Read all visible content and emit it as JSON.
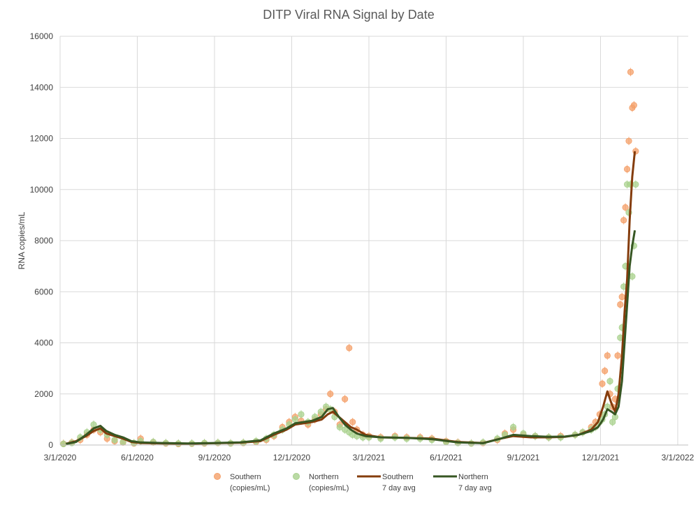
{
  "chart_data": {
    "type": "scatter",
    "title": "DITP Viral RNA Signal by Date",
    "xlabel": "",
    "ylabel": "RNA copies/mL",
    "x_ticks": [
      "3/1/2020",
      "6/1/2020",
      "9/1/2020",
      "12/1/2020",
      "3/1/2021",
      "6/1/2021",
      "9/1/2021",
      "12/1/2021",
      "3/1/2022"
    ],
    "y_ticks": [
      "0",
      "2000",
      "4000",
      "6000",
      "8000",
      "10000",
      "12000",
      "14000",
      "16000"
    ],
    "ylim": [
      0,
      16000
    ],
    "xlim": [
      "2020-03-01",
      "2022-03-01"
    ],
    "grid": true,
    "legend_position": "bottom",
    "series": [
      {
        "name": "Southern (copies/mL)",
        "name_lines": [
          "Southern",
          "(copies/mL)"
        ],
        "kind": "scatter",
        "color": "#f4a06a",
        "x": [
          "2020-03-05",
          "2020-03-15",
          "2020-03-25",
          "2020-04-02",
          "2020-04-10",
          "2020-04-18",
          "2020-04-26",
          "2020-05-05",
          "2020-05-15",
          "2020-05-28",
          "2020-06-05",
          "2020-06-20",
          "2020-07-05",
          "2020-07-20",
          "2020-08-05",
          "2020-08-20",
          "2020-09-05",
          "2020-09-20",
          "2020-10-05",
          "2020-10-20",
          "2020-11-01",
          "2020-11-10",
          "2020-11-20",
          "2020-11-28",
          "2020-12-05",
          "2020-12-12",
          "2020-12-20",
          "2020-12-28",
          "2021-01-04",
          "2021-01-10",
          "2021-01-15",
          "2021-01-20",
          "2021-01-26",
          "2021-02-01",
          "2021-02-06",
          "2021-02-10",
          "2021-02-15",
          "2021-02-22",
          "2021-03-01",
          "2021-03-15",
          "2021-04-01",
          "2021-04-15",
          "2021-05-01",
          "2021-05-15",
          "2021-06-01",
          "2021-06-15",
          "2021-07-01",
          "2021-07-15",
          "2021-08-01",
          "2021-08-10",
          "2021-08-20",
          "2021-09-01",
          "2021-09-15",
          "2021-10-01",
          "2021-10-15",
          "2021-11-01",
          "2021-11-10",
          "2021-11-20",
          "2021-11-25",
          "2021-11-30",
          "2021-12-03",
          "2021-12-06",
          "2021-12-09",
          "2021-12-12",
          "2021-12-15",
          "2021-12-18",
          "2021-12-21",
          "2021-12-24",
          "2021-12-26",
          "2021-12-28",
          "2021-12-30",
          "2022-01-01",
          "2022-01-03",
          "2022-01-05",
          "2022-01-07",
          "2022-01-09",
          "2022-01-11"
        ],
        "y": [
          50,
          100,
          200,
          400,
          600,
          500,
          250,
          150,
          100,
          60,
          250,
          100,
          60,
          40,
          50,
          60,
          80,
          60,
          80,
          120,
          200,
          350,
          700,
          900,
          1100,
          950,
          800,
          1000,
          1200,
          1400,
          2000,
          1300,
          800,
          1800,
          3800,
          900,
          600,
          400,
          350,
          300,
          350,
          300,
          300,
          250,
          150,
          100,
          60,
          80,
          200,
          450,
          600,
          400,
          350,
          300,
          350,
          400,
          500,
          700,
          900,
          1200,
          2400,
          2900,
          3500,
          2000,
          1500,
          1800,
          3500,
          5500,
          5800,
          8800,
          9300,
          10800,
          11900,
          14600,
          13200,
          13300,
          11500
        ]
      },
      {
        "name": "Northern (copies/mL)",
        "name_lines": [
          "Northern",
          "(copies/mL)"
        ],
        "kind": "scatter",
        "color": "#a9d18e",
        "x": [
          "2020-03-05",
          "2020-03-15",
          "2020-03-25",
          "2020-04-02",
          "2020-04-10",
          "2020-04-18",
          "2020-04-26",
          "2020-05-05",
          "2020-05-15",
          "2020-05-28",
          "2020-06-05",
          "2020-06-20",
          "2020-07-05",
          "2020-07-20",
          "2020-08-05",
          "2020-08-20",
          "2020-09-05",
          "2020-09-20",
          "2020-10-05",
          "2020-10-20",
          "2020-11-01",
          "2020-11-10",
          "2020-11-20",
          "2020-11-28",
          "2020-12-05",
          "2020-12-12",
          "2020-12-20",
          "2020-12-28",
          "2021-01-04",
          "2021-01-10",
          "2021-01-15",
          "2021-01-20",
          "2021-01-26",
          "2021-02-01",
          "2021-02-06",
          "2021-02-10",
          "2021-02-15",
          "2021-02-22",
          "2021-03-01",
          "2021-03-15",
          "2021-04-01",
          "2021-04-15",
          "2021-05-01",
          "2021-05-15",
          "2021-06-01",
          "2021-06-15",
          "2021-07-01",
          "2021-07-15",
          "2021-08-01",
          "2021-08-10",
          "2021-08-20",
          "2021-09-01",
          "2021-09-15",
          "2021-10-01",
          "2021-10-15",
          "2021-11-01",
          "2021-11-10",
          "2021-11-20",
          "2021-11-25",
          "2021-11-30",
          "2021-12-03",
          "2021-12-06",
          "2021-12-09",
          "2021-12-12",
          "2021-12-15",
          "2021-12-18",
          "2021-12-21",
          "2021-12-24",
          "2021-12-26",
          "2021-12-28",
          "2021-12-30",
          "2022-01-01",
          "2022-01-03",
          "2022-01-05",
          "2022-01-07",
          "2022-01-09",
          "2022-01-11"
        ],
        "y": [
          40,
          80,
          300,
          500,
          800,
          600,
          400,
          200,
          120,
          80,
          150,
          120,
          80,
          60,
          60,
          80,
          90,
          70,
          90,
          150,
          250,
          400,
          600,
          800,
          1000,
          1200,
          900,
          1100,
          1300,
          1500,
          1400,
          1100,
          700,
          600,
          500,
          400,
          350,
          300,
          300,
          250,
          300,
          250,
          250,
          200,
          120,
          80,
          60,
          100,
          250,
          400,
          700,
          450,
          350,
          300,
          300,
          400,
          500,
          600,
          700,
          900,
          1000,
          1200,
          1500,
          2500,
          900,
          1100,
          2200,
          4200,
          4600,
          6200,
          7000,
          10200,
          9100,
          10200,
          6600,
          7800,
          10200
        ]
      },
      {
        "name": "Southern 7 day avg",
        "name_lines": [
          "Southern",
          "7 day avg"
        ],
        "kind": "line",
        "color": "#843c0c",
        "x": [
          "2020-03-08",
          "2020-03-20",
          "2020-04-01",
          "2020-04-10",
          "2020-04-18",
          "2020-04-25",
          "2020-05-05",
          "2020-05-15",
          "2020-05-25",
          "2020-06-05",
          "2020-07-01",
          "2020-08-01",
          "2020-09-01",
          "2020-10-01",
          "2020-10-25",
          "2020-11-10",
          "2020-11-25",
          "2020-12-05",
          "2020-12-15",
          "2020-12-25",
          "2021-01-05",
          "2021-01-12",
          "2021-01-18",
          "2021-01-25",
          "2021-02-01",
          "2021-02-08",
          "2021-02-15",
          "2021-02-25",
          "2021-03-15",
          "2021-04-15",
          "2021-05-15",
          "2021-06-15",
          "2021-07-15",
          "2021-08-05",
          "2021-08-20",
          "2021-09-10",
          "2021-10-01",
          "2021-10-20",
          "2021-11-05",
          "2021-11-20",
          "2021-11-28",
          "2021-12-04",
          "2021-12-09",
          "2021-12-14",
          "2021-12-18",
          "2021-12-22",
          "2021-12-26",
          "2021-12-29",
          "2022-01-01",
          "2022-01-04",
          "2022-01-07",
          "2022-01-10"
        ],
        "y": [
          50,
          150,
          350,
          550,
          650,
          450,
          350,
          250,
          120,
          80,
          60,
          50,
          70,
          90,
          150,
          400,
          600,
          800,
          850,
          900,
          1000,
          1200,
          1300,
          1100,
          900,
          700,
          600,
          400,
          300,
          280,
          250,
          120,
          80,
          250,
          350,
          300,
          300,
          320,
          400,
          600,
          900,
          1500,
          2100,
          1600,
          1300,
          2000,
          3500,
          5200,
          6500,
          8800,
          10500,
          11500
        ]
      },
      {
        "name": "Northern 7 day avg",
        "name_lines": [
          "Northern",
          "7 day avg"
        ],
        "kind": "line",
        "color": "#375623",
        "x": [
          "2020-03-08",
          "2020-03-20",
          "2020-04-01",
          "2020-04-10",
          "2020-04-18",
          "2020-04-25",
          "2020-05-05",
          "2020-05-15",
          "2020-05-25",
          "2020-06-05",
          "2020-07-01",
          "2020-08-01",
          "2020-09-01",
          "2020-10-01",
          "2020-10-25",
          "2020-11-10",
          "2020-11-25",
          "2020-12-05",
          "2020-12-15",
          "2020-12-25",
          "2021-01-05",
          "2021-01-12",
          "2021-01-18",
          "2021-01-25",
          "2021-02-01",
          "2021-02-08",
          "2021-02-15",
          "2021-02-25",
          "2021-03-15",
          "2021-04-15",
          "2021-05-15",
          "2021-06-15",
          "2021-07-15",
          "2021-08-05",
          "2021-08-20",
          "2021-09-10",
          "2021-10-01",
          "2021-10-20",
          "2021-11-05",
          "2021-11-20",
          "2021-11-28",
          "2021-12-04",
          "2021-12-09",
          "2021-12-14",
          "2021-12-18",
          "2021-12-22",
          "2021-12-26",
          "2021-12-29",
          "2022-01-01",
          "2022-01-04",
          "2022-01-07",
          "2022-01-10"
        ],
        "y": [
          40,
          120,
          400,
          650,
          750,
          550,
          400,
          300,
          150,
          100,
          80,
          60,
          80,
          100,
          180,
          450,
          650,
          850,
          900,
          950,
          1100,
          1400,
          1450,
          1100,
          800,
          600,
          450,
          350,
          300,
          280,
          230,
          100,
          70,
          250,
          400,
          350,
          320,
          330,
          400,
          550,
          700,
          1000,
          1400,
          1300,
          1200,
          1500,
          2500,
          4000,
          5500,
          7000,
          7800,
          8400
        ]
      }
    ]
  }
}
